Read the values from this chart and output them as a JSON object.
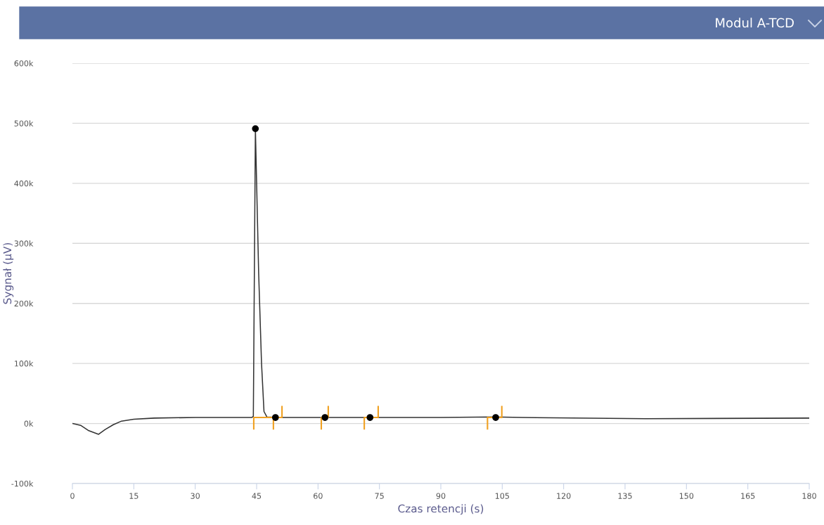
{
  "chart_data": {
    "type": "line",
    "title": "Modul A-TCD",
    "xlabel": "Czas retencji (s)",
    "ylabel": "Sygnał (µV)",
    "xlim": [
      0,
      180
    ],
    "xticks": [
      0,
      15,
      30,
      45,
      60,
      75,
      90,
      105,
      120,
      135,
      150,
      165,
      180
    ],
    "ylim": [
      -100000,
      600000
    ],
    "yticks": [
      {
        "value": -100000,
        "label": "-100k"
      },
      {
        "value": 0,
        "label": "0k"
      },
      {
        "value": 100000,
        "label": "100k"
      },
      {
        "value": 200000,
        "label": "200k"
      },
      {
        "value": 300000,
        "label": "300k"
      },
      {
        "value": 400000,
        "label": "400k"
      },
      {
        "value": 500000,
        "label": "500k"
      },
      {
        "value": 600000,
        "label": "600k"
      }
    ],
    "grid": "y",
    "series": [
      {
        "color": "#333333",
        "marker": "none",
        "x": [
          0,
          2,
          4,
          6.4,
          8,
          10,
          12,
          15,
          20,
          30,
          43.8,
          44.2,
          44.7,
          45.5,
          46.2,
          46.8,
          47.5,
          50,
          90,
          103,
          110,
          140,
          180
        ],
        "values": [
          0,
          -3000,
          -12000,
          -18000,
          -10000,
          -2000,
          4000,
          7000,
          9000,
          10000,
          10000,
          12000,
          491000,
          250000,
          100000,
          20000,
          11000,
          10000,
          10000,
          11000,
          10000,
          8000,
          9000
        ]
      },
      {
        "color": "#f0a020",
        "marker": "none",
        "x": [
          44.3,
          44.3,
          51.2,
          51.2
        ],
        "values": [
          -9000,
          10000,
          10000,
          28000
        ]
      },
      {
        "color": "#f0a020",
        "marker": "none",
        "x": [
          49.1,
          49.1
        ],
        "values": [
          -9000,
          10000
        ]
      },
      {
        "color": "#f0a020",
        "marker": "none",
        "x": [
          60.8,
          60.8,
          62.5,
          62.5
        ],
        "values": [
          -9000,
          10000,
          10000,
          28000
        ]
      },
      {
        "color": "#f0a020",
        "marker": "none",
        "x": [
          71.3,
          71.3,
          74.7,
          74.7
        ],
        "values": [
          -9000,
          10000,
          10000,
          28000
        ]
      },
      {
        "color": "#f0a020",
        "marker": "none",
        "x": [
          101.4,
          101.4,
          104.9,
          104.9
        ],
        "values": [
          -9000,
          10000,
          10000,
          28000
        ]
      },
      {
        "type": "scatter",
        "color": "#000000",
        "marker": "circle",
        "x": [
          44.7,
          49.6,
          61.7,
          72.7,
          103.4
        ],
        "values": [
          491000,
          10000,
          10000,
          10000,
          10000
        ]
      }
    ]
  }
}
